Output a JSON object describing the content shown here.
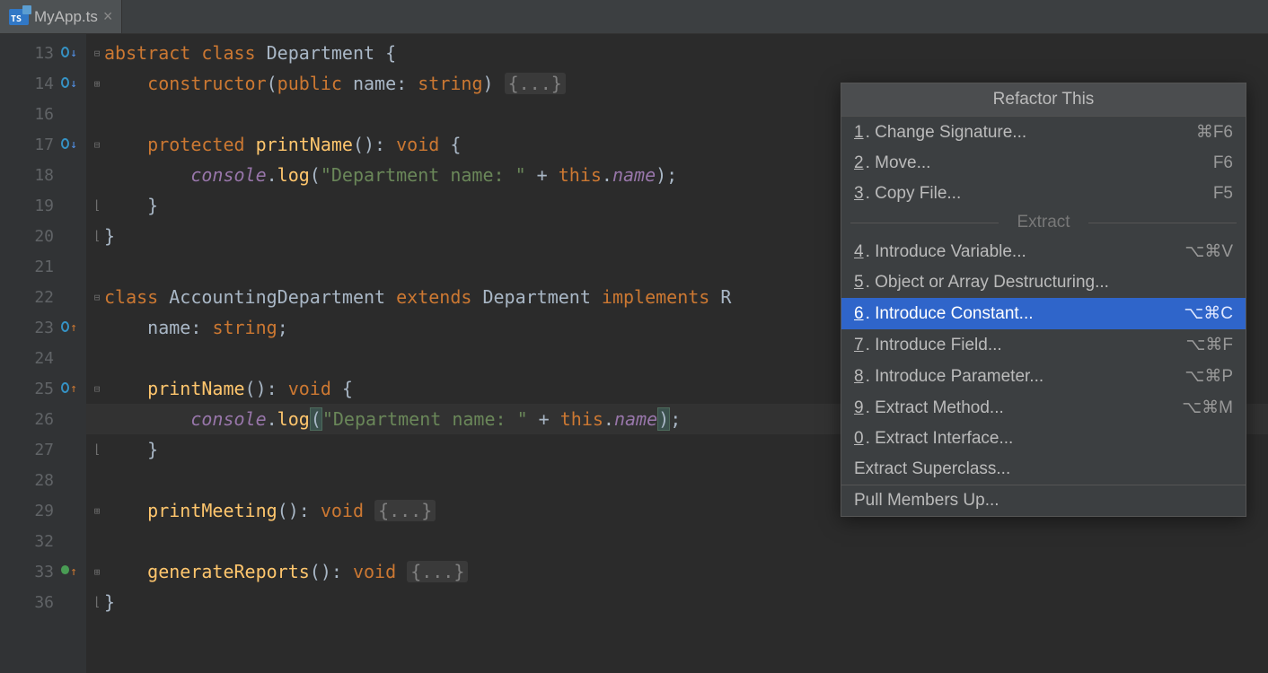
{
  "tab": {
    "filename": "MyApp.ts",
    "icon_label": "TS"
  },
  "lines": [
    {
      "n": 13,
      "mark": "cyan-down",
      "fold": "open",
      "tokens": [
        [
          "kw",
          "abstract"
        ],
        [
          "",
          ""
        ],
        [
          "kw",
          " class"
        ],
        [
          "ident",
          " Department "
        ],
        [
          "",
          "{"
        ]
      ]
    },
    {
      "n": 14,
      "mark": "cyan-down",
      "fold": "closed",
      "tokens": [
        [
          "",
          "    "
        ],
        [
          "kw",
          "constructor"
        ],
        [
          "",
          "("
        ],
        [
          "kw",
          "public"
        ],
        [
          "ident",
          " name"
        ],
        [
          "",
          ": "
        ],
        [
          "kw",
          "string"
        ],
        [
          "",
          ") "
        ],
        [
          "folded",
          "{...}"
        ]
      ]
    },
    {
      "n": 16,
      "mark": "",
      "fold": "",
      "tokens": []
    },
    {
      "n": 17,
      "mark": "cyan-down",
      "fold": "open",
      "tokens": [
        [
          "",
          "    "
        ],
        [
          "kw",
          "protected"
        ],
        [
          "fn",
          " printName"
        ],
        [
          "",
          "(): "
        ],
        [
          "kw",
          "void"
        ],
        [
          "",
          " {"
        ]
      ]
    },
    {
      "n": 18,
      "mark": "",
      "fold": "",
      "tokens": [
        [
          "",
          "        "
        ],
        [
          "field",
          "console"
        ],
        [
          "",
          ""
        ],
        [
          "ident",
          "."
        ],
        [
          "fn",
          "log"
        ],
        [
          "",
          "("
        ],
        [
          "str",
          "\"Department name: \""
        ],
        [
          "",
          " + "
        ],
        [
          "kw",
          "this"
        ],
        [
          "",
          ""
        ],
        [
          "ident",
          "."
        ],
        [
          "field",
          "name"
        ],
        [
          "",
          ");"
        ]
      ]
    },
    {
      "n": 19,
      "mark": "",
      "fold": "end",
      "tokens": [
        [
          "",
          "    }"
        ]
      ]
    },
    {
      "n": 20,
      "mark": "",
      "fold": "end",
      "tokens": [
        [
          "",
          "}"
        ]
      ]
    },
    {
      "n": 21,
      "mark": "",
      "fold": "",
      "tokens": []
    },
    {
      "n": 22,
      "mark": "",
      "fold": "open",
      "tokens": [
        [
          "kw",
          "class"
        ],
        [
          "ident",
          " AccountingDepartment "
        ],
        [
          "kw",
          "extends"
        ],
        [
          "ident",
          " Department "
        ],
        [
          "kw",
          "implements"
        ],
        [
          "ident",
          " R"
        ]
      ]
    },
    {
      "n": 23,
      "mark": "cyan-up",
      "fold": "",
      "tokens": [
        [
          "",
          "    "
        ],
        [
          "ident",
          "name"
        ],
        [
          "",
          ": "
        ],
        [
          "kw",
          "string"
        ],
        [
          "",
          ";"
        ]
      ]
    },
    {
      "n": 24,
      "mark": "",
      "fold": "",
      "tokens": []
    },
    {
      "n": 25,
      "mark": "cyan-up",
      "fold": "open",
      "tokens": [
        [
          "",
          "    "
        ],
        [
          "fn",
          "printName"
        ],
        [
          "",
          "(): "
        ],
        [
          "kw",
          "void"
        ],
        [
          "",
          " {"
        ]
      ]
    },
    {
      "n": 26,
      "mark": "",
      "fold": "",
      "hl": true,
      "tokens": [
        [
          "",
          "        "
        ],
        [
          "field",
          "console"
        ],
        [
          "ident",
          "."
        ],
        [
          "fn",
          "log"
        ],
        [
          "paren",
          "("
        ],
        [
          "str",
          "\"Department name: \""
        ],
        [
          "",
          " + "
        ],
        [
          "kw",
          "this"
        ],
        [
          "ident",
          "."
        ],
        [
          "field",
          "name"
        ],
        [
          "paren",
          ")"
        ],
        [
          "",
          ";"
        ]
      ]
    },
    {
      "n": 27,
      "mark": "",
      "fold": "end",
      "tokens": [
        [
          "",
          "    }"
        ]
      ]
    },
    {
      "n": 28,
      "mark": "",
      "fold": "",
      "tokens": []
    },
    {
      "n": 29,
      "mark": "",
      "fold": "closed",
      "tokens": [
        [
          "",
          "    "
        ],
        [
          "fn",
          "printMeeting"
        ],
        [
          "",
          "(): "
        ],
        [
          "kw",
          "void"
        ],
        [
          "",
          " "
        ],
        [
          "folded",
          "{...}"
        ]
      ]
    },
    {
      "n": 32,
      "mark": "",
      "fold": "",
      "tokens": []
    },
    {
      "n": 33,
      "mark": "green-up",
      "fold": "closed",
      "tokens": [
        [
          "",
          "    "
        ],
        [
          "fn",
          "generateReports"
        ],
        [
          "",
          "(): "
        ],
        [
          "kw",
          "void"
        ],
        [
          "",
          " "
        ],
        [
          "folded",
          "{...}"
        ]
      ]
    },
    {
      "n": 36,
      "mark": "",
      "fold": "end",
      "tokens": [
        [
          "",
          "}"
        ]
      ]
    }
  ],
  "popup": {
    "title": "Refactor This",
    "groups": [
      {
        "items": [
          {
            "n": "1",
            "label": "Change Signature...",
            "sc": "⌘F6"
          },
          {
            "n": "2",
            "label": "Move...",
            "sc": "F6"
          },
          {
            "n": "3",
            "label": "Copy File...",
            "sc": "F5"
          }
        ]
      },
      {
        "header": "Extract",
        "items": [
          {
            "n": "4",
            "label": "Introduce Variable...",
            "sc": "⌥⌘V"
          },
          {
            "n": "5",
            "label": "Object or Array Destructuring...",
            "sc": ""
          },
          {
            "n": "6",
            "label": "Introduce Constant...",
            "sc": "⌥⌘C",
            "sel": true
          },
          {
            "n": "7",
            "label": "Introduce Field...",
            "sc": "⌥⌘F"
          },
          {
            "n": "8",
            "label": "Introduce Parameter...",
            "sc": "⌥⌘P"
          },
          {
            "n": "9",
            "label": "Extract Method...",
            "sc": "⌥⌘M"
          },
          {
            "n": "0",
            "label": "Extract Interface...",
            "sc": ""
          },
          {
            "n": "",
            "label": "Extract Superclass...",
            "sc": ""
          }
        ]
      },
      {
        "items": [
          {
            "n": "",
            "label": "Pull Members Up...",
            "sc": ""
          }
        ]
      }
    ]
  }
}
